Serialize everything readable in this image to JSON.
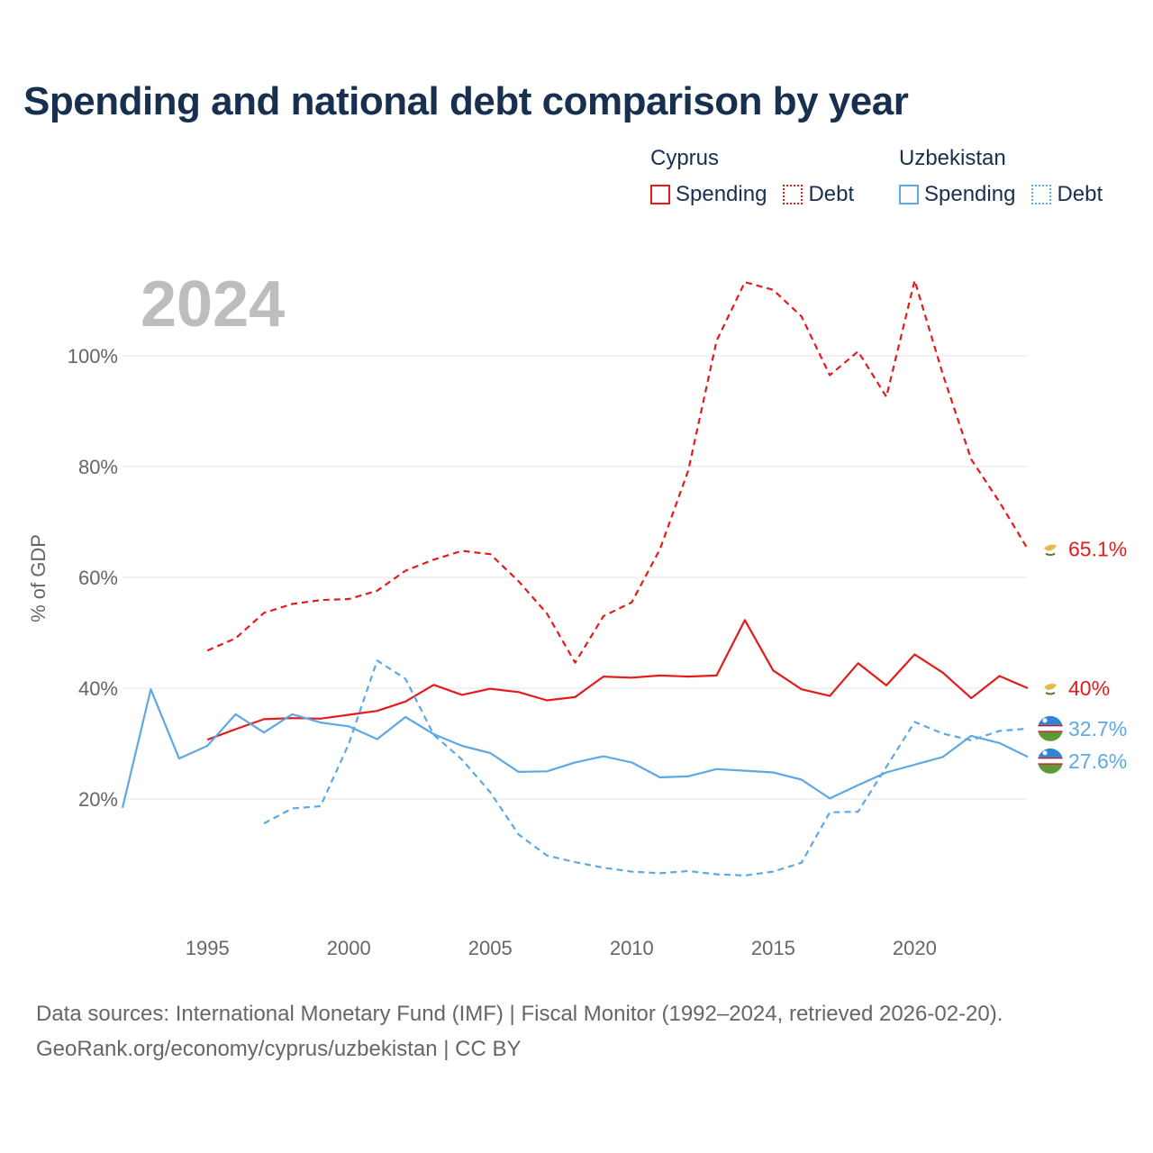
{
  "title": "Spending and national debt comparison by year",
  "legend": [
    {
      "country": "Cyprus",
      "spending_label": "Spending",
      "debt_label": "Debt",
      "color": "#e31b1b"
    },
    {
      "country": "Uzbekistan",
      "spending_label": "Spending",
      "debt_label": "Debt",
      "color": "#5ea8e6"
    }
  ],
  "footer": {
    "source": "Data sources: International Monetary Fund (IMF) | Fiscal Monitor (1992–2024, retrieved 2026-02-20).",
    "attribution": "GeoRank.org/economy/cyprus/uzbekistan | CC BY"
  },
  "chart_data": {
    "type": "line",
    "year_label": "2024",
    "ylabel": "% of GDP",
    "xlim": [
      1992,
      2024
    ],
    "ylim": [
      0,
      115
    ],
    "x_ticks": [
      1995,
      2000,
      2005,
      2010,
      2015,
      2020
    ],
    "y_ticks": [
      {
        "value": 20,
        "label": "20%"
      },
      {
        "value": 40,
        "label": "40%"
      },
      {
        "value": 60,
        "label": "60%"
      },
      {
        "value": 80,
        "label": "80%"
      },
      {
        "value": 100,
        "label": "100%"
      }
    ],
    "grid": true,
    "series": [
      {
        "name": "Cyprus Debt",
        "country": "Cyprus",
        "metric": "Debt",
        "color": "#e31b1b",
        "dashed": true,
        "end_label": "65.1%",
        "x": [
          1995,
          1996,
          1997,
          1998,
          1999,
          2000,
          2001,
          2002,
          2003,
          2004,
          2005,
          2006,
          2007,
          2008,
          2009,
          2010,
          2011,
          2012,
          2013,
          2014,
          2015,
          2016,
          2017,
          2018,
          2019,
          2020,
          2021,
          2022,
          2023,
          2024
        ],
        "values": [
          46.8,
          49.0,
          53.6,
          55.2,
          55.9,
          56.1,
          57.6,
          61.2,
          63.2,
          64.8,
          64.2,
          59.3,
          53.5,
          44.6,
          53.0,
          55.5,
          65.1,
          79.3,
          102.7,
          113.3,
          111.9,
          107.1,
          96.5,
          100.8,
          92.6,
          113.6,
          96.6,
          81.3,
          73.6,
          65.1
        ]
      },
      {
        "name": "Cyprus Spending",
        "country": "Cyprus",
        "metric": "Spending",
        "color": "#e31b1b",
        "dashed": false,
        "end_label": "40%",
        "x": [
          1995,
          1996,
          1997,
          1998,
          1999,
          2000,
          2001,
          2002,
          2003,
          2004,
          2005,
          2006,
          2007,
          2008,
          2009,
          2010,
          2011,
          2012,
          2013,
          2014,
          2015,
          2016,
          2017,
          2018,
          2019,
          2020,
          2021,
          2022,
          2023,
          2024
        ],
        "values": [
          30.7,
          32.6,
          34.4,
          34.6,
          34.5,
          35.2,
          35.9,
          37.6,
          40.6,
          38.8,
          39.9,
          39.3,
          37.8,
          38.4,
          42.1,
          41.9,
          42.3,
          42.1,
          42.3,
          52.3,
          43.2,
          39.8,
          38.6,
          44.5,
          40.5,
          46.1,
          42.8,
          38.2,
          42.2,
          40.0
        ]
      },
      {
        "name": "Uzbekistan Debt",
        "country": "Uzbekistan",
        "metric": "Debt",
        "color": "#5ea8e6",
        "dashed": true,
        "end_label": "32.7%",
        "x": [
          1997,
          1998,
          1999,
          2000,
          2001,
          2002,
          2003,
          2004,
          2005,
          2006,
          2007,
          2008,
          2009,
          2010,
          2011,
          2012,
          2013,
          2014,
          2015,
          2016,
          2017,
          2018,
          2019,
          2020,
          2021,
          2022,
          2023,
          2024
        ],
        "values": [
          15.6,
          18.3,
          18.7,
          30.0,
          45.0,
          41.7,
          31.6,
          27.1,
          21.2,
          13.6,
          9.8,
          8.6,
          7.6,
          6.9,
          6.6,
          7.0,
          6.4,
          6.2,
          6.9,
          8.5,
          17.6,
          17.7,
          25.8,
          33.9,
          31.8,
          30.6,
          32.3,
          32.7
        ]
      },
      {
        "name": "Uzbekistan Spending",
        "country": "Uzbekistan",
        "metric": "Spending",
        "color": "#5ea8e6",
        "dashed": false,
        "end_label": "27.6%",
        "x": [
          1992,
          1993,
          1994,
          1995,
          1996,
          1997,
          1998,
          1999,
          2000,
          2001,
          2002,
          2003,
          2004,
          2005,
          2006,
          2007,
          2008,
          2009,
          2010,
          2011,
          2012,
          2013,
          2014,
          2015,
          2016,
          2017,
          2018,
          2019,
          2020,
          2021,
          2022,
          2023,
          2024
        ],
        "values": [
          18.4,
          39.8,
          27.3,
          29.6,
          35.3,
          32.0,
          35.3,
          33.8,
          33.1,
          30.8,
          34.8,
          31.7,
          29.6,
          28.3,
          24.9,
          25.0,
          26.6,
          27.7,
          26.6,
          23.9,
          24.1,
          25.4,
          25.1,
          24.8,
          23.5,
          20.1,
          22.5,
          24.8,
          26.2,
          27.6,
          31.4,
          30.1,
          27.6
        ]
      }
    ]
  }
}
